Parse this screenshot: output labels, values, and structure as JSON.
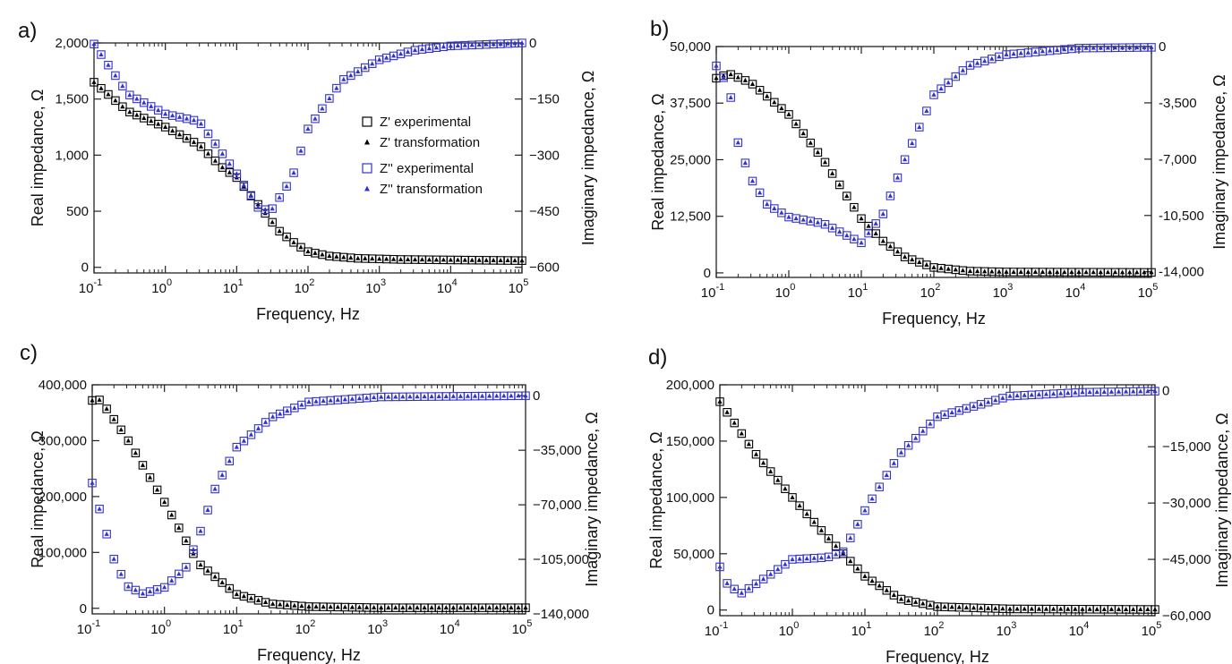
{
  "chart_data": [
    {
      "panel_label": "a)",
      "type": "scatter",
      "x_scale": "log",
      "xlim": [
        0.1,
        100000
      ],
      "x_ticks": [
        {
          "value": 0.1,
          "base": "10",
          "exp": "-1"
        },
        {
          "value": 1,
          "base": "10",
          "exp": "0"
        },
        {
          "value": 10,
          "base": "10",
          "exp": "1"
        },
        {
          "value": 100,
          "base": "10",
          "exp": "2"
        },
        {
          "value": 1000,
          "base": "10",
          "exp": "3"
        },
        {
          "value": 10000,
          "base": "10",
          "exp": "4"
        },
        {
          "value": 100000,
          "base": "10",
          "exp": "5"
        }
      ],
      "xlabel": "Frequency, Hz",
      "ylabel_left": "Real impedance, Ω",
      "ylabel_right": "Imaginary impedance, Ω",
      "ylim_left": [
        -50,
        2000
      ],
      "ylim_right": [
        -615,
        0
      ],
      "yticks_left": [
        {
          "value": 0,
          "label": "0"
        },
        {
          "value": 500,
          "label": "500"
        },
        {
          "value": 1000,
          "label": "1,000"
        },
        {
          "value": 1500,
          "label": "1,500"
        },
        {
          "value": 2000,
          "label": "2,000"
        }
      ],
      "yticks_right": [
        {
          "value": 0,
          "label": "0"
        },
        {
          "value": -150,
          "label": "−150"
        },
        {
          "value": -300,
          "label": "−300"
        },
        {
          "value": -450,
          "label": "−450"
        },
        {
          "value": -600,
          "label": "−600"
        }
      ],
      "legend": {
        "position": "middle-right",
        "entries": [
          "Z' experimental",
          "Z' transformation",
          "Z'' experimental",
          "Z'' transformation"
        ]
      },
      "real_points": [
        [
          0.1,
          1650
        ],
        [
          0.3,
          1390
        ],
        [
          1,
          1250
        ],
        [
          3,
          1090
        ],
        [
          6,
          900
        ],
        [
          10,
          800
        ],
        [
          20,
          560
        ],
        [
          40,
          320
        ],
        [
          70,
          200
        ],
        [
          100,
          140
        ],
        [
          200,
          100
        ],
        [
          500,
          80
        ],
        [
          2000,
          70
        ],
        [
          100000,
          60
        ]
      ],
      "imag_points": [
        [
          0.1,
          -3
        ],
        [
          0.3,
          -137
        ],
        [
          1,
          -190
        ],
        [
          3,
          -210
        ],
        [
          10,
          -350
        ],
        [
          20,
          -440
        ],
        [
          30,
          -450
        ],
        [
          60,
          -360
        ],
        [
          100,
          -230
        ],
        [
          300,
          -100
        ],
        [
          1000,
          -45
        ],
        [
          3000,
          -20
        ],
        [
          10000,
          -8
        ],
        [
          100000,
          0
        ]
      ]
    },
    {
      "panel_label": "b)",
      "type": "scatter",
      "x_scale": "log",
      "xlim": [
        0.1,
        100000
      ],
      "x_ticks": [
        {
          "value": 0.1,
          "base": "10",
          "exp": "-1"
        },
        {
          "value": 1,
          "base": "10",
          "exp": "0"
        },
        {
          "value": 10,
          "base": "10",
          "exp": "1"
        },
        {
          "value": 100,
          "base": "10",
          "exp": "2"
        },
        {
          "value": 1000,
          "base": "10",
          "exp": "3"
        },
        {
          "value": 10000,
          "base": "10",
          "exp": "4"
        },
        {
          "value": 100000,
          "base": "10",
          "exp": "5"
        }
      ],
      "xlabel": "Frequency, Hz",
      "ylabel_left": "Real impedance, Ω",
      "ylabel_right": "Imaginary impedance, Ω",
      "ylim_left": [
        -1000,
        50000
      ],
      "ylim_right": [
        -14350,
        0
      ],
      "yticks_left": [
        {
          "value": 0,
          "label": "0"
        },
        {
          "value": 12500,
          "label": "12,500"
        },
        {
          "value": 25000,
          "label": "25,000"
        },
        {
          "value": 37500,
          "label": "37,500"
        },
        {
          "value": 50000,
          "label": "50,000"
        }
      ],
      "yticks_right": [
        {
          "value": 0,
          "label": "0"
        },
        {
          "value": -3500,
          "label": "-3,500"
        },
        {
          "value": -7000,
          "label": "-7,000"
        },
        {
          "value": -10500,
          "label": "-10,500"
        },
        {
          "value": -14000,
          "label": "-14,000"
        }
      ],
      "legend": null,
      "real_points": [
        [
          0.1,
          43000
        ],
        [
          0.15,
          44000
        ],
        [
          0.3,
          42000
        ],
        [
          1,
          35000
        ],
        [
          3,
          25000
        ],
        [
          10,
          12000
        ],
        [
          20,
          7000
        ],
        [
          40,
          3500
        ],
        [
          100,
          1200
        ],
        [
          300,
          400
        ],
        [
          1000,
          200
        ],
        [
          100000,
          100
        ]
      ],
      "imag_points": [
        [
          0.1,
          -1200
        ],
        [
          0.15,
          -2500
        ],
        [
          0.2,
          -6000
        ],
        [
          0.3,
          -8200
        ],
        [
          0.5,
          -9800
        ],
        [
          1,
          -10600
        ],
        [
          3,
          -11000
        ],
        [
          10,
          -12200
        ],
        [
          20,
          -10400
        ],
        [
          40,
          -7000
        ],
        [
          100,
          -3000
        ],
        [
          300,
          -1200
        ],
        [
          1000,
          -500
        ],
        [
          10000,
          -100
        ],
        [
          100000,
          -50
        ]
      ]
    },
    {
      "panel_label": "c)",
      "type": "scatter",
      "x_scale": "log",
      "xlim": [
        0.1,
        100000
      ],
      "x_ticks": [
        {
          "value": 0.1,
          "base": "10",
          "exp": "-1"
        },
        {
          "value": 1,
          "base": "10",
          "exp": "0"
        },
        {
          "value": 10,
          "base": "10",
          "exp": "1"
        },
        {
          "value": 100,
          "base": "10",
          "exp": "2"
        },
        {
          "value": 1000,
          "base": "10",
          "exp": "3"
        },
        {
          "value": 10000,
          "base": "10",
          "exp": "4"
        },
        {
          "value": 100000,
          "base": "10",
          "exp": "5"
        }
      ],
      "xlabel": "Frequency, Hz",
      "ylabel_left": "Real impedance, Ω",
      "ylabel_right": "Imaginary impedance, Ω",
      "ylim_left": [
        -10000,
        400000
      ],
      "ylim_right": [
        -140000,
        7000
      ],
      "yticks_left": [
        {
          "value": 0,
          "label": "0"
        },
        {
          "value": 100000,
          "label": "100,000"
        },
        {
          "value": 200000,
          "label": "200,000"
        },
        {
          "value": 300000,
          "label": "300,000"
        },
        {
          "value": 400000,
          "label": "400,000"
        }
      ],
      "yticks_right": [
        {
          "value": 0,
          "label": "0"
        },
        {
          "value": -35000,
          "label": "−35,000"
        },
        {
          "value": -70000,
          "label": "−70,000"
        },
        {
          "value": -105000,
          "label": "−105,000"
        },
        {
          "value": -140000,
          "label": "−140,000"
        }
      ],
      "legend": null,
      "real_points": [
        [
          0.1,
          372000
        ],
        [
          0.13,
          373000
        ],
        [
          0.3,
          305000
        ],
        [
          1,
          190000
        ],
        [
          3,
          80000
        ],
        [
          10,
          25000
        ],
        [
          30,
          8000
        ],
        [
          100,
          3000
        ],
        [
          1000,
          1000
        ],
        [
          100000,
          1000
        ]
      ],
      "imag_points": [
        [
          0.1,
          -56000
        ],
        [
          0.13,
          -75000
        ],
        [
          0.2,
          -105000
        ],
        [
          0.3,
          -122000
        ],
        [
          0.5,
          -127000
        ],
        [
          1,
          -123000
        ],
        [
          2,
          -110000
        ],
        [
          3,
          -90000
        ],
        [
          5,
          -60000
        ],
        [
          10,
          -33000
        ],
        [
          30,
          -14000
        ],
        [
          100,
          -4000
        ],
        [
          1000,
          -800
        ],
        [
          100000,
          0
        ]
      ]
    },
    {
      "panel_label": "d)",
      "type": "scatter",
      "x_scale": "log",
      "xlim": [
        0.1,
        100000
      ],
      "x_ticks": [
        {
          "value": 0.1,
          "base": "10",
          "exp": "-1"
        },
        {
          "value": 1,
          "base": "10",
          "exp": "0"
        },
        {
          "value": 10,
          "base": "10",
          "exp": "1"
        },
        {
          "value": 100,
          "base": "10",
          "exp": "2"
        },
        {
          "value": 1000,
          "base": "10",
          "exp": "3"
        },
        {
          "value": 10000,
          "base": "10",
          "exp": "4"
        },
        {
          "value": 100000,
          "base": "10",
          "exp": "5"
        }
      ],
      "xlabel": "Frequency, Hz",
      "ylabel_left": "Real impedance, Ω",
      "ylabel_right": "Imaginary impedance, Ω",
      "ylim_left": [
        -5000,
        200000
      ],
      "ylim_right": [
        -60000,
        1500
      ],
      "yticks_left": [
        {
          "value": 0,
          "label": "0"
        },
        {
          "value": 50000,
          "label": "50,000"
        },
        {
          "value": 100000,
          "label": "100,000"
        },
        {
          "value": 150000,
          "label": "150,000"
        },
        {
          "value": 200000,
          "label": "200,000"
        }
      ],
      "yticks_right": [
        {
          "value": 0,
          "label": "0"
        },
        {
          "value": -15000,
          "label": "−15,000"
        },
        {
          "value": -30000,
          "label": "−30,000"
        },
        {
          "value": -45000,
          "label": "−45,000"
        },
        {
          "value": -60000,
          "label": "−60,000"
        }
      ],
      "legend": null,
      "real_points": [
        [
          0.1,
          185000
        ],
        [
          0.3,
          140000
        ],
        [
          1,
          100000
        ],
        [
          3,
          65000
        ],
        [
          10,
          30000
        ],
        [
          30,
          10000
        ],
        [
          100,
          3000
        ],
        [
          1000,
          1000
        ],
        [
          100000,
          500
        ]
      ],
      "imag_points": [
        [
          0.1,
          -47000
        ],
        [
          0.13,
          -52000
        ],
        [
          0.2,
          -54000
        ],
        [
          0.5,
          -49000
        ],
        [
          1,
          -45000
        ],
        [
          3,
          -44500
        ],
        [
          5,
          -43000
        ],
        [
          10,
          -32000
        ],
        [
          30,
          -17000
        ],
        [
          100,
          -7000
        ],
        [
          1000,
          -1500
        ],
        [
          10000,
          -500
        ],
        [
          100000,
          -200
        ]
      ]
    }
  ],
  "colors": {
    "real": "#000000",
    "imag": "#3333cc"
  }
}
